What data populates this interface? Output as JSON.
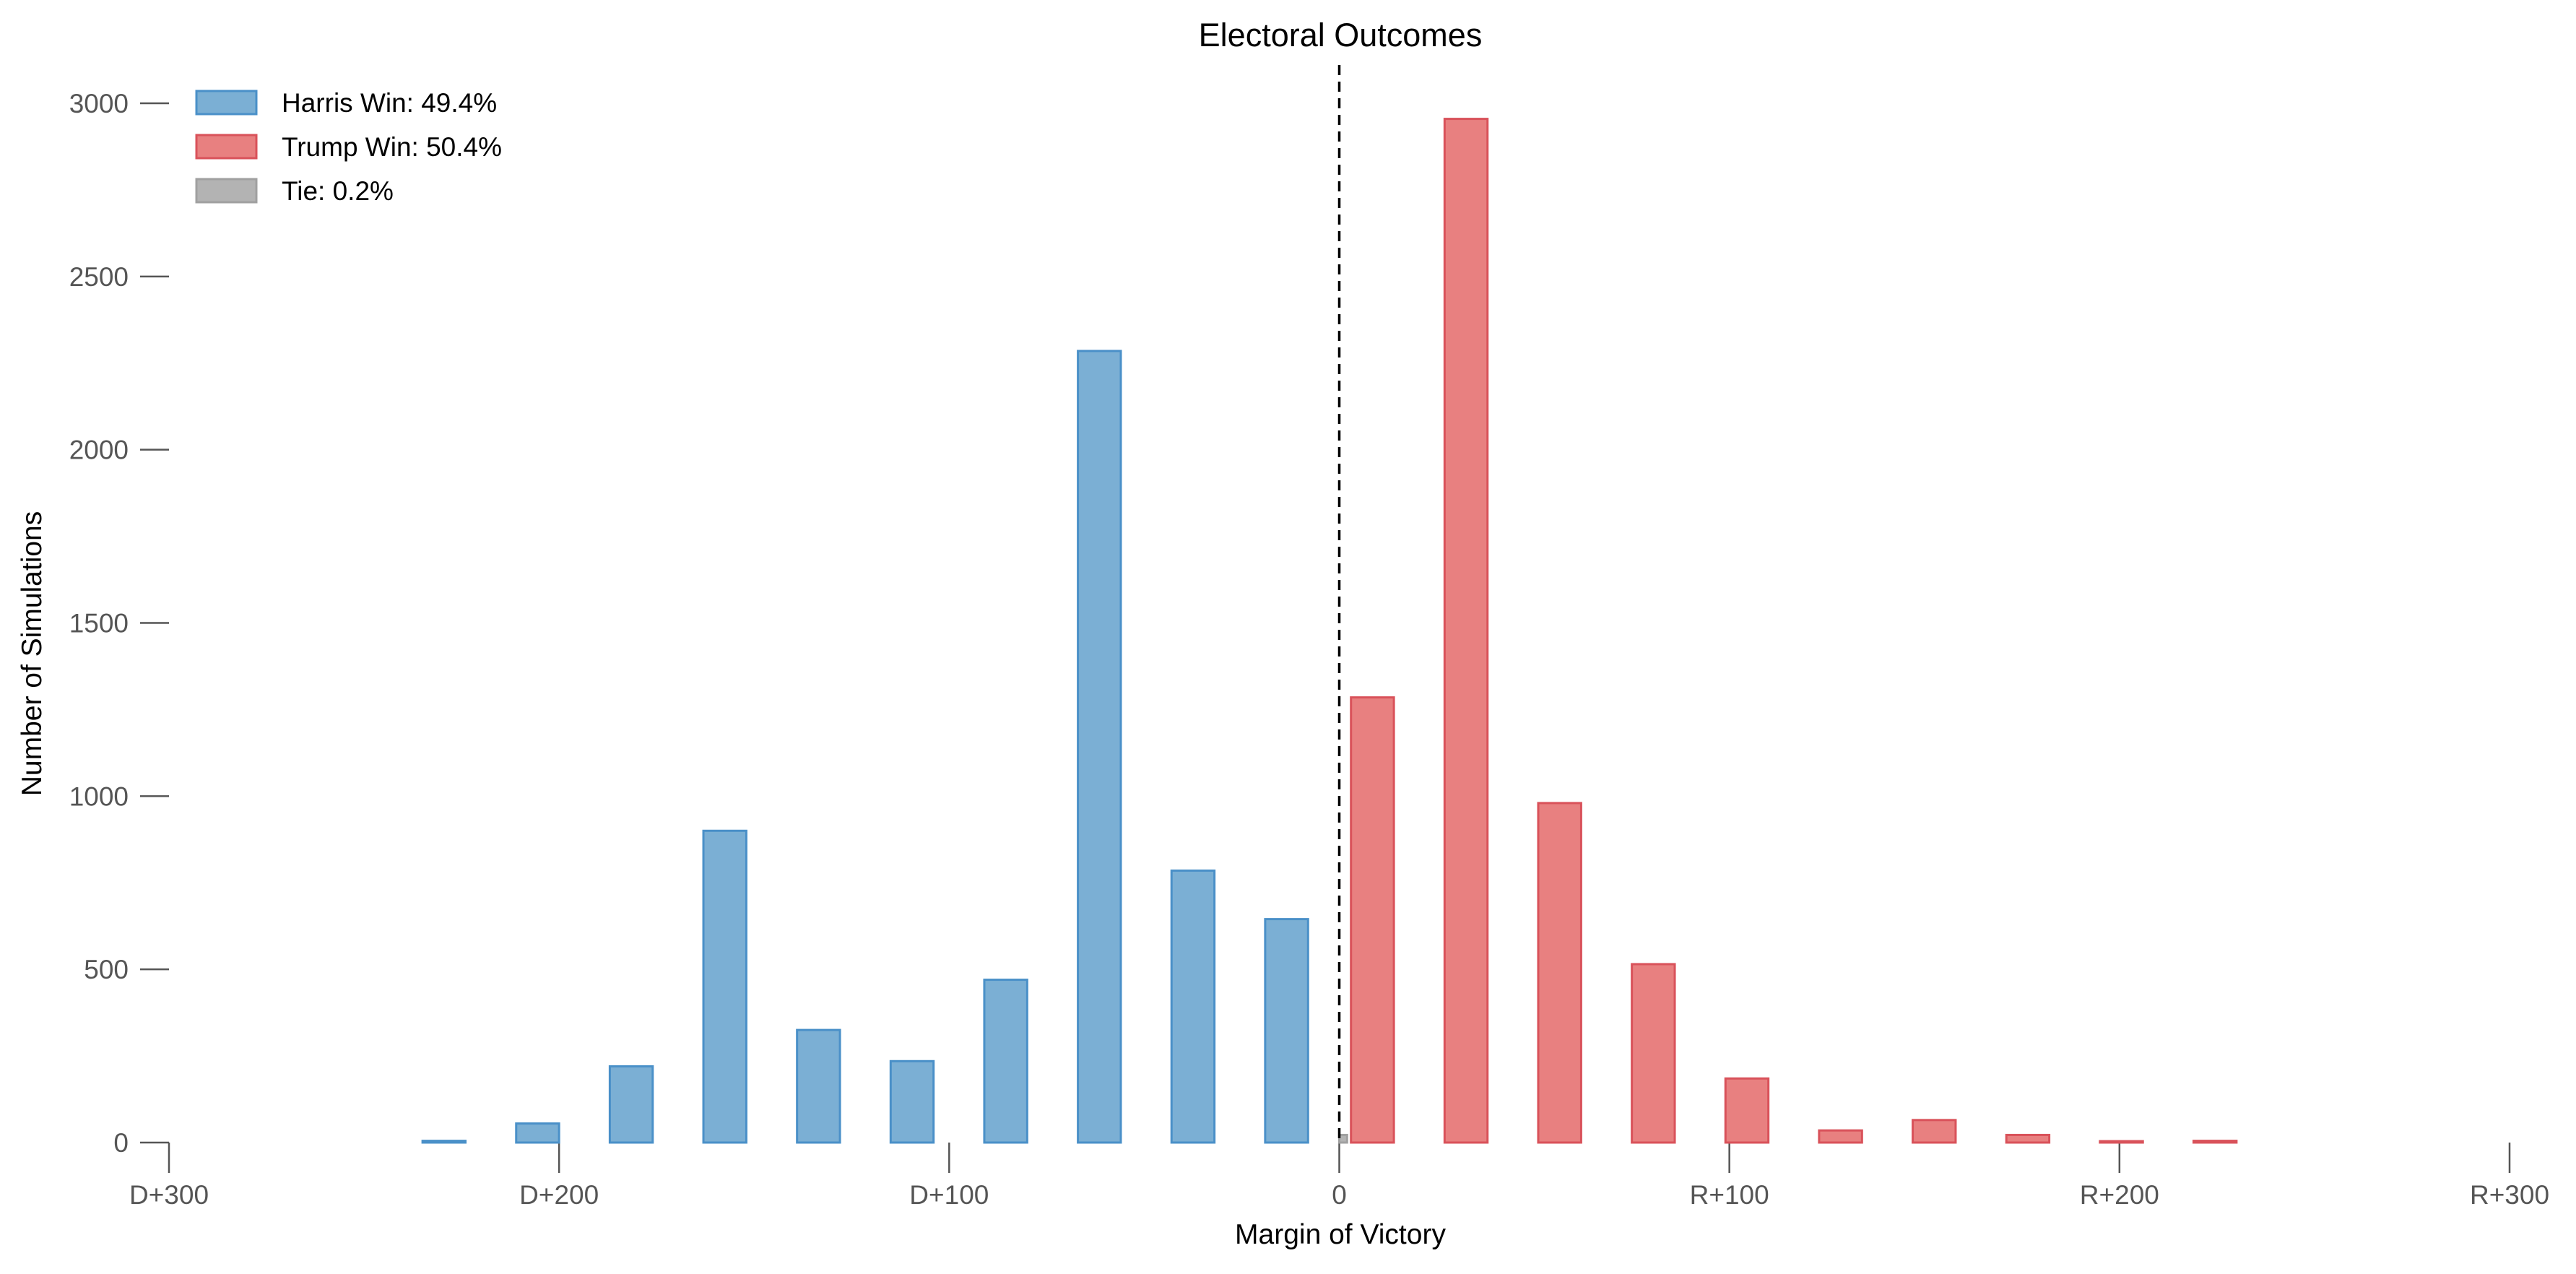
{
  "chart_data": {
    "type": "bar",
    "title": "Electoral Outcomes",
    "xlabel": "Margin of Victory",
    "ylabel": "Number of Simulations",
    "xlim": [
      -300,
      300
    ],
    "ylim": [
      0,
      3000
    ],
    "x_ticks": [
      {
        "value": -300,
        "label": "D+300"
      },
      {
        "value": -200,
        "label": "D+200"
      },
      {
        "value": -100,
        "label": "D+100"
      },
      {
        "value": 0,
        "label": "0"
      },
      {
        "value": 100,
        "label": "R+100"
      },
      {
        "value": 200,
        "label": "R+200"
      },
      {
        "value": 300,
        "label": "R+300"
      }
    ],
    "y_ticks": [
      {
        "value": 0,
        "label": "0"
      },
      {
        "value": 500,
        "label": "500"
      },
      {
        "value": 1000,
        "label": "1000"
      },
      {
        "value": 1500,
        "label": "1500"
      },
      {
        "value": 2000,
        "label": "2000"
      },
      {
        "value": 2500,
        "label": "2500"
      },
      {
        "value": 3000,
        "label": "3000"
      }
    ],
    "grid": false,
    "legend_position": "top-left",
    "reference_line": {
      "x": 0,
      "style": "dashed",
      "color": "#000000"
    },
    "series": [
      {
        "name": "Harris Win: 49.4%",
        "fill": "#7bafd4",
        "stroke": "#4a90c8",
        "bins": [
          {
            "x0": -235,
            "x1": -224,
            "y": 5
          },
          {
            "x0": -211,
            "x1": -200,
            "y": 55
          },
          {
            "x0": -187,
            "x1": -176,
            "y": 220
          },
          {
            "x0": -163,
            "x1": -152,
            "y": 900
          },
          {
            "x0": -139,
            "x1": -128,
            "y": 325
          },
          {
            "x0": -115,
            "x1": -104,
            "y": 235
          },
          {
            "x0": -91,
            "x1": -80,
            "y": 470
          },
          {
            "x0": -67,
            "x1": -56,
            "y": 2285
          },
          {
            "x0": -43,
            "x1": -32,
            "y": 785
          },
          {
            "x0": -19,
            "x1": -8,
            "y": 645
          }
        ]
      },
      {
        "name": "Trump Win: 50.4%",
        "fill": "#e88080",
        "stroke": "#d9525a",
        "bins": [
          {
            "x0": 3,
            "x1": 14,
            "y": 1285
          },
          {
            "x0": 27,
            "x1": 38,
            "y": 2955
          },
          {
            "x0": 51,
            "x1": 62,
            "y": 980
          },
          {
            "x0": 75,
            "x1": 86,
            "y": 515
          },
          {
            "x0": 99,
            "x1": 110,
            "y": 185
          },
          {
            "x0": 123,
            "x1": 134,
            "y": 35
          },
          {
            "x0": 147,
            "x1": 158,
            "y": 65
          },
          {
            "x0": 171,
            "x1": 182,
            "y": 22
          },
          {
            "x0": 195,
            "x1": 206,
            "y": 4
          },
          {
            "x0": 219,
            "x1": 230,
            "y": 5
          }
        ]
      },
      {
        "name": "Tie: 0.2%",
        "fill": "#b3b3b3",
        "stroke": "#a0a0a0",
        "bins": [
          {
            "x0": 0,
            "x1": 2,
            "y": 22
          }
        ]
      }
    ]
  }
}
